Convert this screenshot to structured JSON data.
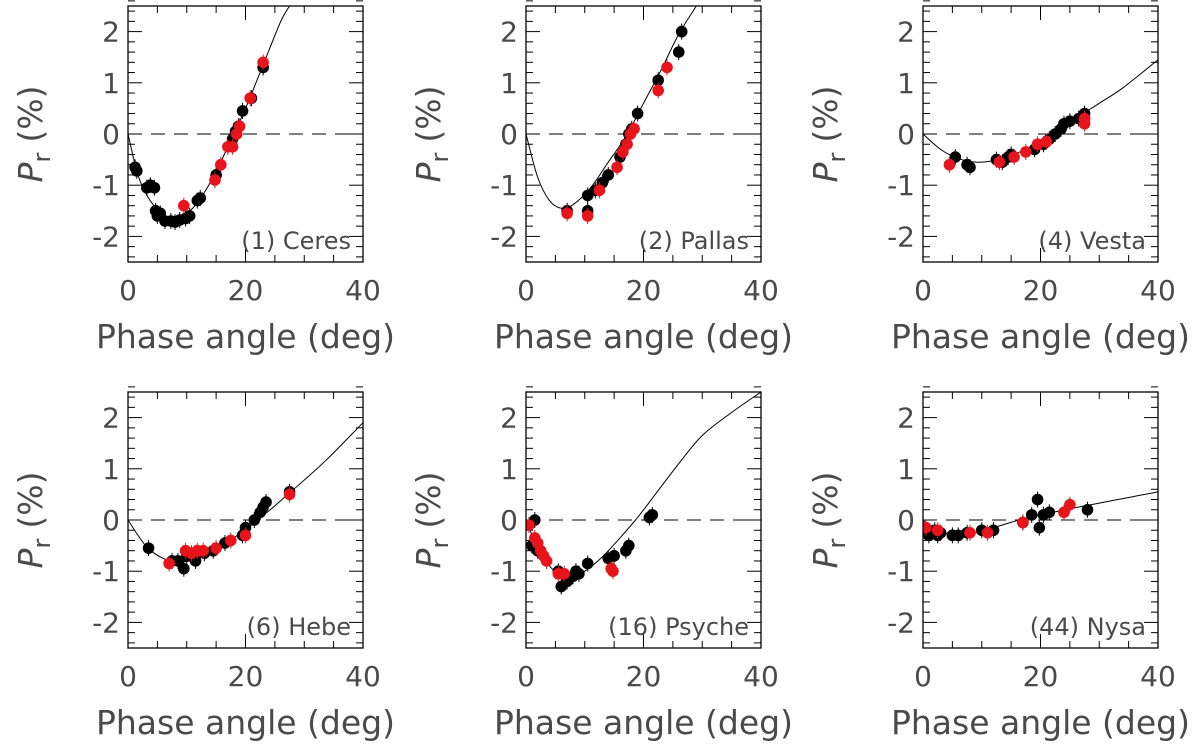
{
  "colors": {
    "black_series": "#000000",
    "red_series": "#e8141b"
  },
  "chart_data": [
    {
      "type": "scatter",
      "panel_label": "(1) Ceres",
      "xlabel": "Phase angle (deg)",
      "ylabel_main": "P",
      "ylabel_sub": "r",
      "ylabel_unit": "(%)",
      "xlim": [
        0,
        40
      ],
      "ylim": [
        -2.5,
        2.5
      ],
      "x_ticks": [
        "0",
        "20",
        "40"
      ],
      "y_ticks": [
        "2",
        "1",
        "0",
        "-1",
        "-2"
      ],
      "zero_line": "dashed",
      "series": [
        {
          "points": [
            [
              1.2,
              -0.65
            ],
            [
              1.5,
              -0.72
            ],
            [
              3.2,
              -1.05
            ],
            [
              3.8,
              -1.0
            ],
            [
              4.5,
              -1.05
            ],
            [
              4.7,
              -1.5
            ],
            [
              5.0,
              -1.6
            ],
            [
              5.5,
              -1.55
            ],
            [
              6.3,
              -1.7
            ],
            [
              7.3,
              -1.7
            ],
            [
              8.0,
              -1.72
            ],
            [
              8.8,
              -1.68
            ],
            [
              9.8,
              -1.65
            ],
            [
              10.5,
              -1.6
            ],
            [
              11.8,
              -1.3
            ],
            [
              12.3,
              -1.25
            ],
            [
              15.0,
              -0.8
            ],
            [
              17.8,
              -0.1
            ],
            [
              18.3,
              0.05
            ],
            [
              18.8,
              0.15
            ],
            [
              19.5,
              0.45
            ],
            [
              21.0,
              0.7
            ],
            [
              23.0,
              1.3
            ]
          ]
        },
        {
          "points": [
            [
              9.5,
              -1.4
            ],
            [
              14.8,
              -0.9
            ],
            [
              15.8,
              -0.6
            ],
            [
              17.0,
              -0.25
            ],
            [
              17.8,
              -0.25
            ],
            [
              18.5,
              0.0
            ],
            [
              19.0,
              0.15
            ],
            [
              20.8,
              0.7
            ],
            [
              23.0,
              1.4
            ]
          ]
        }
      ],
      "model": {
        "x_start": 0,
        "points": [
          [
            0,
            0
          ],
          [
            2,
            -0.9
          ],
          [
            5,
            -1.48
          ],
          [
            8,
            -1.65
          ],
          [
            11,
            -1.45
          ],
          [
            14,
            -0.95
          ],
          [
            17,
            -0.25
          ],
          [
            20,
            0.5
          ],
          [
            23,
            1.35
          ],
          [
            26,
            2.2
          ],
          [
            27.5,
            2.5
          ]
        ]
      }
    },
    {
      "type": "scatter",
      "panel_label": "(2) Pallas",
      "xlabel": "Phase angle (deg)",
      "ylabel_main": "P",
      "ylabel_sub": "r",
      "ylabel_unit": "(%)",
      "xlim": [
        0,
        40
      ],
      "ylim": [
        -2.5,
        2.5
      ],
      "x_ticks": [
        "0",
        "20",
        "40"
      ],
      "y_ticks": [
        "2",
        "1",
        "0",
        "-1",
        "-2"
      ],
      "zero_line": "dashed",
      "series": [
        {
          "points": [
            [
              7.0,
              -1.5
            ],
            [
              10.5,
              -1.5
            ],
            [
              10.5,
              -1.2
            ],
            [
              11.8,
              -1.1
            ],
            [
              13.0,
              -0.95
            ],
            [
              14.0,
              -0.8
            ],
            [
              16.0,
              -0.45
            ],
            [
              17.0,
              -0.2
            ],
            [
              17.5,
              0.0
            ],
            [
              18.0,
              0.1
            ],
            [
              19.0,
              0.4
            ],
            [
              22.5,
              1.05
            ],
            [
              26.0,
              1.6
            ],
            [
              26.5,
              2.0
            ]
          ]
        },
        {
          "points": [
            [
              7.0,
              -1.55
            ],
            [
              10.5,
              -1.6
            ],
            [
              12.5,
              -1.1
            ],
            [
              15.5,
              -0.65
            ],
            [
              16.5,
              -0.35
            ],
            [
              17.2,
              -0.2
            ],
            [
              17.8,
              0.0
            ],
            [
              18.4,
              0.1
            ],
            [
              22.5,
              0.85
            ],
            [
              24.0,
              1.3
            ]
          ]
        }
      ],
      "model": {
        "x_start": 0,
        "points": [
          [
            0,
            0
          ],
          [
            2,
            -0.85
          ],
          [
            4,
            -1.3
          ],
          [
            6,
            -1.45
          ],
          [
            8,
            -1.38
          ],
          [
            11,
            -1.05
          ],
          [
            14,
            -0.55
          ],
          [
            17,
            -0.05
          ],
          [
            20,
            0.6
          ],
          [
            23,
            1.25
          ],
          [
            26,
            1.95
          ],
          [
            29,
            2.5
          ]
        ]
      }
    },
    {
      "type": "scatter",
      "panel_label": "(4) Vesta",
      "xlabel": "Phase angle (deg)",
      "ylabel_main": "P",
      "ylabel_sub": "r",
      "ylabel_unit": "(%)",
      "xlim": [
        0,
        40
      ],
      "ylim": [
        -2.5,
        2.5
      ],
      "x_ticks": [
        "0",
        "20",
        "40"
      ],
      "y_ticks": [
        "2",
        "1",
        "0",
        "-1",
        "-2"
      ],
      "zero_line": "dashed",
      "series": [
        {
          "points": [
            [
              5.5,
              -0.45
            ],
            [
              7.5,
              -0.6
            ],
            [
              8.0,
              -0.65
            ],
            [
              12.5,
              -0.5
            ],
            [
              13.5,
              -0.55
            ],
            [
              14.5,
              -0.45
            ],
            [
              15.0,
              -0.4
            ],
            [
              19.0,
              -0.3
            ],
            [
              20.5,
              -0.2
            ],
            [
              21.5,
              -0.1
            ],
            [
              22.5,
              0.0
            ],
            [
              23.5,
              0.1
            ],
            [
              24.0,
              0.2
            ],
            [
              25.0,
              0.25
            ],
            [
              26.5,
              0.3
            ],
            [
              27.5,
              0.4
            ]
          ]
        },
        {
          "points": [
            [
              4.5,
              -0.6
            ],
            [
              13.0,
              -0.55
            ],
            [
              15.5,
              -0.45
            ],
            [
              17.5,
              -0.35
            ],
            [
              19.5,
              -0.2
            ],
            [
              21.0,
              -0.15
            ],
            [
              27.5,
              0.2
            ],
            [
              27.5,
              0.3
            ]
          ]
        }
      ],
      "model": {
        "x_start": 0,
        "points": [
          [
            0,
            0
          ],
          [
            3,
            -0.3
          ],
          [
            6,
            -0.48
          ],
          [
            9,
            -0.55
          ],
          [
            12,
            -0.52
          ],
          [
            15,
            -0.42
          ],
          [
            18,
            -0.27
          ],
          [
            21,
            -0.08
          ],
          [
            24,
            0.15
          ],
          [
            27,
            0.38
          ],
          [
            30,
            0.6
          ],
          [
            34,
            0.9
          ],
          [
            40,
            1.45
          ]
        ]
      }
    },
    {
      "type": "scatter",
      "panel_label": "(6) Hebe",
      "xlabel": "Phase angle (deg)",
      "ylabel_main": "P",
      "ylabel_sub": "r",
      "ylabel_unit": "(%)",
      "xlim": [
        0,
        40
      ],
      "ylim": [
        -2.5,
        2.5
      ],
      "x_ticks": [
        "0",
        "20",
        "40"
      ],
      "y_ticks": [
        "2",
        "1",
        "0",
        "-1",
        "-2"
      ],
      "zero_line": "dashed",
      "series": [
        {
          "points": [
            [
              3.5,
              -0.55
            ],
            [
              7.5,
              -0.8
            ],
            [
              8.5,
              -0.8
            ],
            [
              9.5,
              -0.95
            ],
            [
              10.0,
              -0.7
            ],
            [
              11.0,
              -0.7
            ],
            [
              11.5,
              -0.8
            ],
            [
              13.0,
              -0.65
            ],
            [
              14.5,
              -0.6
            ],
            [
              16.5,
              -0.45
            ],
            [
              19.5,
              -0.3
            ],
            [
              20.0,
              -0.15
            ],
            [
              21.5,
              0.0
            ],
            [
              22.5,
              0.15
            ],
            [
              23.0,
              0.25
            ],
            [
              23.5,
              0.35
            ],
            [
              27.5,
              0.55
            ]
          ]
        },
        {
          "points": [
            [
              7.0,
              -0.85
            ],
            [
              9.8,
              -0.6
            ],
            [
              10.8,
              -0.65
            ],
            [
              11.8,
              -0.6
            ],
            [
              12.8,
              -0.6
            ],
            [
              15.0,
              -0.55
            ],
            [
              17.5,
              -0.4
            ],
            [
              20.0,
              -0.3
            ],
            [
              27.5,
              0.5
            ]
          ]
        }
      ],
      "model": {
        "x_start": 0,
        "points": [
          [
            0,
            0
          ],
          [
            3,
            -0.5
          ],
          [
            6,
            -0.75
          ],
          [
            9,
            -0.82
          ],
          [
            12,
            -0.75
          ],
          [
            15,
            -0.58
          ],
          [
            18,
            -0.35
          ],
          [
            21,
            -0.1
          ],
          [
            24,
            0.18
          ],
          [
            27,
            0.48
          ],
          [
            30,
            0.78
          ],
          [
            34,
            1.2
          ],
          [
            40,
            1.9
          ]
        ]
      }
    },
    {
      "type": "scatter",
      "panel_label": "(16) Psyche",
      "xlabel": "Phase angle (deg)",
      "ylabel_main": "P",
      "ylabel_sub": "r",
      "ylabel_unit": "(%)",
      "xlim": [
        0,
        40
      ],
      "ylim": [
        -2.5,
        2.5
      ],
      "x_ticks": [
        "0",
        "20",
        "40"
      ],
      "y_ticks": [
        "2",
        "1",
        "0",
        "-1",
        "-2"
      ],
      "zero_line": "dashed",
      "series": [
        {
          "points": [
            [
              1.5,
              0.0
            ],
            [
              1.0,
              -0.5
            ],
            [
              2.0,
              -0.6
            ],
            [
              5.5,
              -1.0
            ],
            [
              6.0,
              -1.3
            ],
            [
              7.0,
              -1.2
            ],
            [
              8.0,
              -1.1
            ],
            [
              8.5,
              -1.0
            ],
            [
              9.0,
              -1.05
            ],
            [
              10.5,
              -0.85
            ],
            [
              14.0,
              -0.75
            ],
            [
              15.0,
              -0.7
            ],
            [
              17.0,
              -0.6
            ],
            [
              17.5,
              -0.5
            ],
            [
              21.0,
              0.05
            ],
            [
              21.5,
              0.1
            ]
          ]
        },
        {
          "points": [
            [
              0.5,
              -0.1
            ],
            [
              1.5,
              -0.35
            ],
            [
              2.0,
              -0.45
            ],
            [
              2.5,
              -0.6
            ],
            [
              3.0,
              -0.7
            ],
            [
              3.5,
              -0.8
            ],
            [
              5.5,
              -1.05
            ],
            [
              6.5,
              -1.05
            ],
            [
              14.5,
              -0.95
            ],
            [
              14.8,
              -1.0
            ]
          ]
        }
      ],
      "model": {
        "x_start": 0,
        "points": [
          [
            0,
            0
          ],
          [
            2,
            -0.55
          ],
          [
            4,
            -0.9
          ],
          [
            6,
            -1.08
          ],
          [
            8,
            -1.1
          ],
          [
            10,
            -1.0
          ],
          [
            13,
            -0.72
          ],
          [
            16,
            -0.35
          ],
          [
            19,
            0.05
          ],
          [
            22,
            0.5
          ],
          [
            26,
            1.1
          ],
          [
            30,
            1.65
          ],
          [
            35,
            2.1
          ],
          [
            40,
            2.5
          ]
        ]
      }
    },
    {
      "type": "scatter",
      "panel_label": "(44) Nysa",
      "xlabel": "Phase angle (deg)",
      "ylabel_main": "P",
      "ylabel_sub": "r",
      "ylabel_unit": "(%)",
      "xlim": [
        0,
        40
      ],
      "ylim": [
        -2.5,
        2.5
      ],
      "x_ticks": [
        "0",
        "20",
        "40"
      ],
      "y_ticks": [
        "2",
        "1",
        "0",
        "-1",
        "-2"
      ],
      "zero_line": "dashed",
      "series": [
        {
          "points": [
            [
              0.5,
              -0.2
            ],
            [
              1.0,
              -0.3
            ],
            [
              1.5,
              -0.25
            ],
            [
              2.0,
              -0.2
            ],
            [
              2.5,
              -0.3
            ],
            [
              3.0,
              -0.25
            ],
            [
              5.0,
              -0.3
            ],
            [
              6.0,
              -0.3
            ],
            [
              7.5,
              -0.25
            ],
            [
              10.0,
              -0.2
            ],
            [
              12.0,
              -0.2
            ],
            [
              17.0,
              -0.05
            ],
            [
              18.5,
              0.1
            ],
            [
              19.5,
              0.4
            ],
            [
              19.8,
              -0.15
            ],
            [
              20.5,
              0.1
            ],
            [
              21.5,
              0.15
            ],
            [
              28.0,
              0.2
            ]
          ]
        },
        {
          "points": [
            [
              0.5,
              -0.15
            ],
            [
              2.5,
              -0.2
            ],
            [
              8.0,
              -0.25
            ],
            [
              11.0,
              -0.25
            ],
            [
              17.0,
              -0.05
            ],
            [
              24.0,
              0.15
            ],
            [
              25.0,
              0.3
            ]
          ]
        }
      ],
      "model": {
        "x_start": 0,
        "points": [
          [
            0,
            0
          ],
          [
            2,
            -0.2
          ],
          [
            5,
            -0.28
          ],
          [
            8,
            -0.26
          ],
          [
            11,
            -0.18
          ],
          [
            14,
            -0.08
          ],
          [
            17,
            0.02
          ],
          [
            20,
            0.1
          ],
          [
            25,
            0.22
          ],
          [
            30,
            0.33
          ],
          [
            35,
            0.44
          ],
          [
            40,
            0.55
          ]
        ]
      }
    }
  ]
}
